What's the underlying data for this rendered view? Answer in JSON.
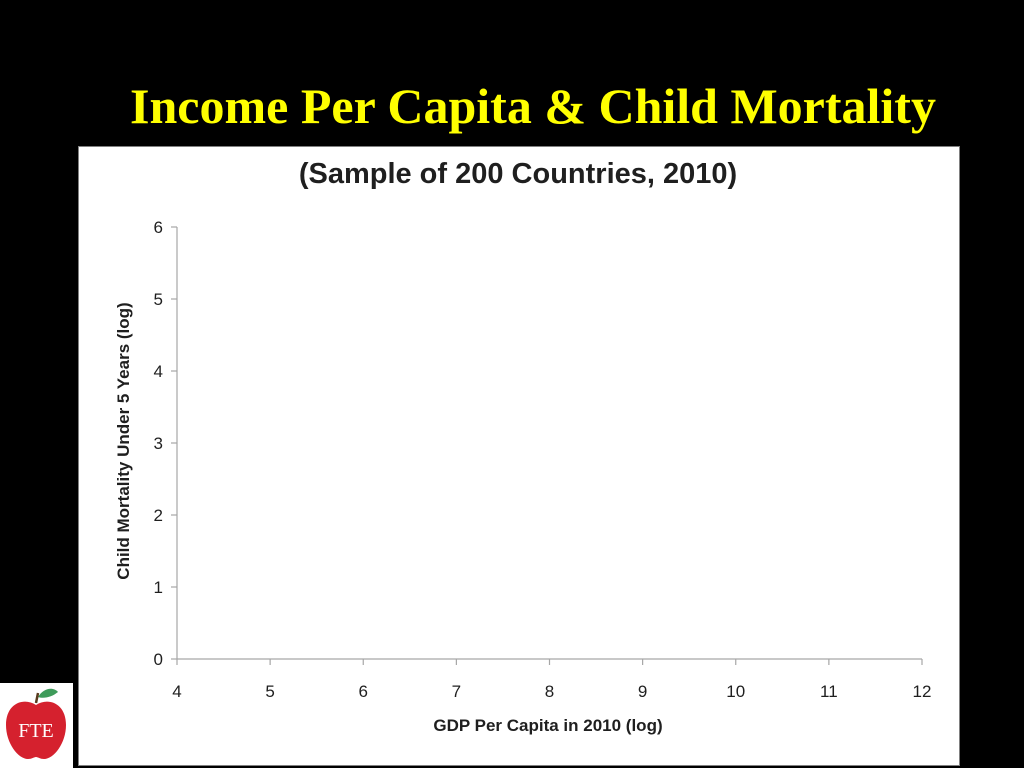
{
  "slide": {
    "title": "Income Per Capita & Child Mortality"
  },
  "logo": {
    "text": "FTE",
    "apple_color": "#D5212E",
    "leaf_color": "#3E9B5A"
  },
  "chart_data": {
    "type": "scatter",
    "title": "(Sample of 200 Countries, 2010)",
    "xlabel": "GDP Per Capita in 2010 (log)",
    "ylabel": "Child Mortality  Under 5 Years (log)",
    "xlim": [
      4,
      12
    ],
    "ylim": [
      0,
      6
    ],
    "x_ticks": [
      4,
      5,
      6,
      7,
      8,
      9,
      10,
      11,
      12
    ],
    "y_ticks": [
      0,
      1,
      2,
      3,
      4,
      5,
      6
    ],
    "grid": false,
    "series": [
      {
        "points": []
      }
    ],
    "colors": {
      "axis": "#A6A6A6",
      "text": "#1F1F1F"
    }
  }
}
